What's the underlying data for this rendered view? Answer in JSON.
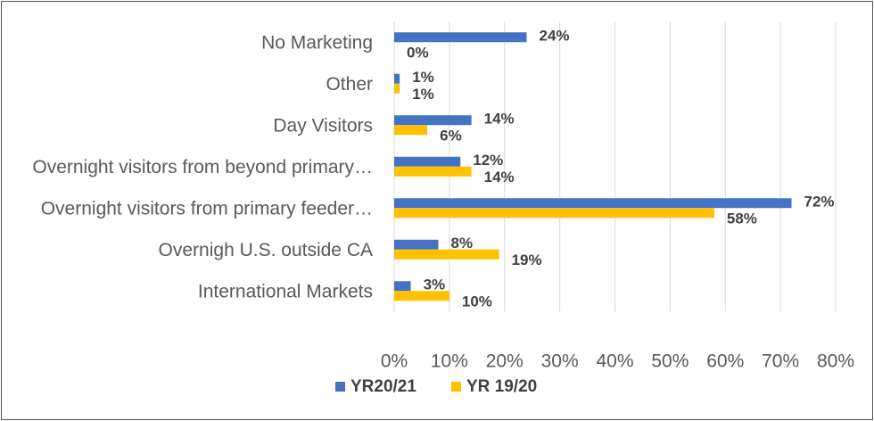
{
  "chart_data": {
    "type": "bar",
    "orientation": "horizontal",
    "categories": [
      "No Marketing",
      "Other",
      "Day Visitors",
      "Overnight visitors from beyond primary…",
      "Overnight visitors from primary feeder…",
      "Overnigh U.S. outside CA",
      "International Markets"
    ],
    "series": [
      {
        "name": "YR20/21",
        "color": "#4472C4",
        "values": [
          24,
          1,
          14,
          12,
          72,
          8,
          3
        ],
        "labels": [
          "24%",
          "1%",
          "14%",
          "12%",
          "72%",
          "8%",
          "3%"
        ]
      },
      {
        "name": "YR 19/20",
        "color": "#FFC000",
        "values": [
          0,
          1,
          6,
          14,
          58,
          19,
          10
        ],
        "labels": [
          "0%",
          "1%",
          "6%",
          "14%",
          "58%",
          "19%",
          "10%"
        ]
      }
    ],
    "xlim": [
      0,
      80
    ],
    "xticks": [
      0,
      10,
      20,
      30,
      40,
      50,
      60,
      70,
      80
    ],
    "xtick_labels": [
      "0%",
      "10%",
      "20%",
      "30%",
      "40%",
      "50%",
      "60%",
      "70%",
      "80%"
    ],
    "grid": true,
    "legend_position": "bottom",
    "title": "",
    "xlabel": "",
    "ylabel": ""
  }
}
